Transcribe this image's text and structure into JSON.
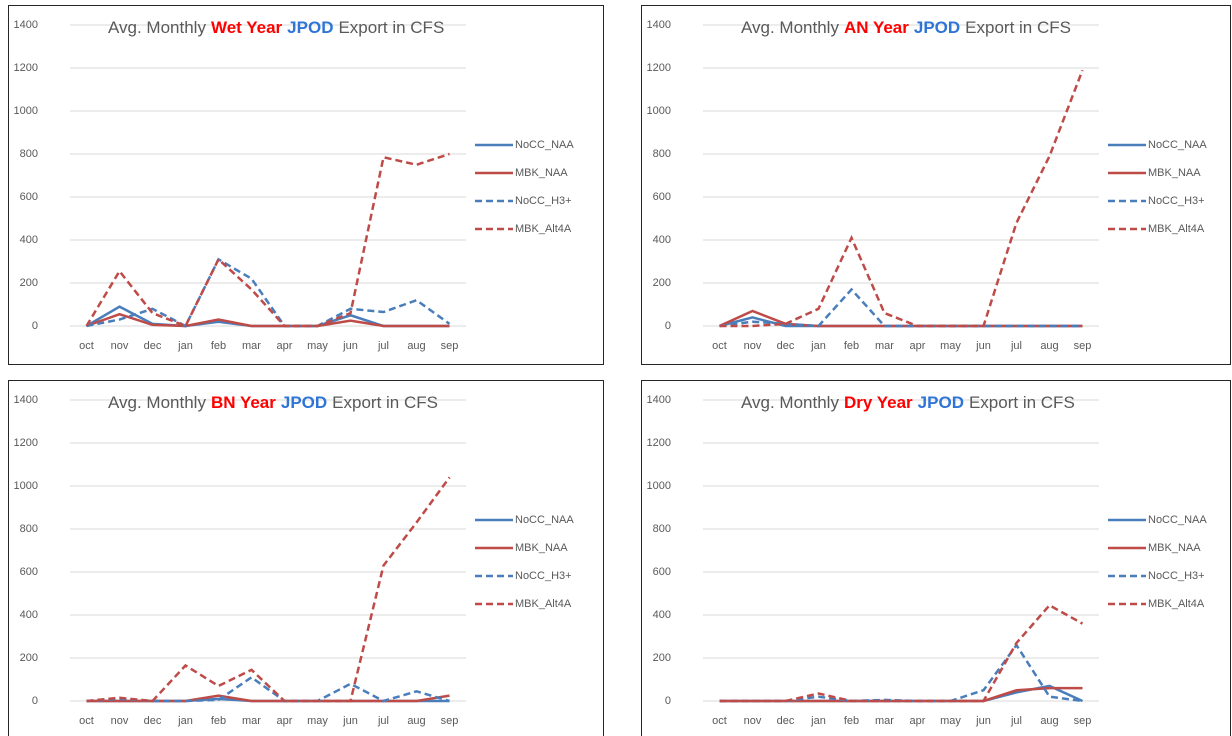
{
  "chart_data": [
    {
      "type": "line",
      "title": [
        "Avg. Monthly",
        "Wet Year",
        "JPOD",
        "Export in CFS"
      ],
      "categories": [
        "oct",
        "nov",
        "dec",
        "jan",
        "feb",
        "mar",
        "apr",
        "may",
        "jun",
        "jul",
        "aug",
        "sep"
      ],
      "ylim": [
        0,
        1400
      ],
      "yticks": [
        0,
        200,
        400,
        600,
        800,
        1000,
        1200,
        1400
      ],
      "grid": true,
      "legend": "right",
      "series": [
        {
          "name": "NoCC_NAA",
          "color": "#4a7ebb",
          "dash": false,
          "values": [
            0,
            90,
            10,
            0,
            20,
            0,
            0,
            0,
            50,
            0,
            0,
            0
          ]
        },
        {
          "name": "MBK_NAA",
          "color": "#be4b48",
          "dash": false,
          "values": [
            0,
            55,
            5,
            0,
            30,
            0,
            0,
            0,
            25,
            0,
            0,
            0
          ]
        },
        {
          "name": "NoCC_H3+",
          "color": "#4a7ebb",
          "dash": true,
          "values": [
            0,
            30,
            80,
            0,
            310,
            220,
            0,
            0,
            80,
            65,
            120,
            10
          ]
        },
        {
          "name": "MBK_Alt4A",
          "color": "#be4b48",
          "dash": true,
          "values": [
            0,
            255,
            60,
            0,
            310,
            170,
            0,
            0,
            60,
            785,
            750,
            800
          ]
        }
      ]
    },
    {
      "type": "line",
      "title": [
        "Avg. Monthly",
        "AN Year",
        "JPOD",
        "Export in CFS"
      ],
      "categories": [
        "oct",
        "nov",
        "dec",
        "jan",
        "feb",
        "mar",
        "apr",
        "may",
        "jun",
        "jul",
        "aug",
        "sep"
      ],
      "ylim": [
        0,
        1400
      ],
      "yticks": [
        0,
        200,
        400,
        600,
        800,
        1000,
        1200,
        1400
      ],
      "grid": true,
      "legend": "right",
      "series": [
        {
          "name": "NoCC_NAA",
          "color": "#4a7ebb",
          "dash": false,
          "values": [
            0,
            40,
            0,
            0,
            0,
            0,
            0,
            0,
            0,
            0,
            0,
            0
          ]
        },
        {
          "name": "MBK_NAA",
          "color": "#be4b48",
          "dash": false,
          "values": [
            0,
            70,
            10,
            0,
            0,
            0,
            0,
            0,
            0,
            0,
            0,
            0
          ]
        },
        {
          "name": "NoCC_H3+",
          "color": "#4a7ebb",
          "dash": true,
          "values": [
            0,
            20,
            10,
            0,
            170,
            0,
            0,
            0,
            0,
            0,
            0,
            0
          ]
        },
        {
          "name": "MBK_Alt4A",
          "color": "#be4b48",
          "dash": true,
          "values": [
            0,
            0,
            10,
            80,
            410,
            60,
            0,
            0,
            0,
            480,
            790,
            1190
          ]
        }
      ]
    },
    {
      "type": "line",
      "title": [
        "Avg. Monthly",
        "BN Year",
        "JPOD",
        "Export in CFS"
      ],
      "categories": [
        "oct",
        "nov",
        "dec",
        "jan",
        "feb",
        "mar",
        "apr",
        "may",
        "jun",
        "jul",
        "aug",
        "sep"
      ],
      "ylim": [
        0,
        1400
      ],
      "yticks": [
        0,
        200,
        400,
        600,
        800,
        1000,
        1200,
        1400
      ],
      "grid": true,
      "legend": "right",
      "series": [
        {
          "name": "NoCC_NAA",
          "color": "#4a7ebb",
          "dash": false,
          "values": [
            0,
            0,
            0,
            0,
            10,
            0,
            0,
            0,
            0,
            0,
            0,
            0
          ]
        },
        {
          "name": "MBK_NAA",
          "color": "#be4b48",
          "dash": false,
          "values": [
            0,
            0,
            0,
            0,
            25,
            0,
            0,
            0,
            0,
            0,
            0,
            25
          ]
        },
        {
          "name": "NoCC_H3+",
          "color": "#4a7ebb",
          "dash": true,
          "values": [
            0,
            10,
            0,
            0,
            5,
            110,
            0,
            0,
            80,
            0,
            45,
            0
          ]
        },
        {
          "name": "MBK_Alt4A",
          "color": "#be4b48",
          "dash": true,
          "values": [
            0,
            15,
            0,
            165,
            70,
            145,
            0,
            0,
            0,
            630,
            830,
            1040
          ]
        }
      ]
    },
    {
      "type": "line",
      "title": [
        "Avg. Monthly",
        "Dry Year",
        "JPOD",
        "Export in CFS"
      ],
      "categories": [
        "oct",
        "nov",
        "dec",
        "jan",
        "feb",
        "mar",
        "apr",
        "may",
        "jun",
        "jul",
        "aug",
        "sep"
      ],
      "ylim": [
        0,
        1400
      ],
      "yticks": [
        0,
        200,
        400,
        600,
        800,
        1000,
        1200,
        1400
      ],
      "grid": true,
      "legend": "right",
      "series": [
        {
          "name": "NoCC_NAA",
          "color": "#4a7ebb",
          "dash": false,
          "values": [
            0,
            0,
            0,
            0,
            0,
            0,
            0,
            0,
            0,
            40,
            70,
            0
          ]
        },
        {
          "name": "MBK_NAA",
          "color": "#be4b48",
          "dash": false,
          "values": [
            0,
            0,
            0,
            0,
            0,
            0,
            0,
            0,
            0,
            50,
            60,
            60
          ]
        },
        {
          "name": "NoCC_H3+",
          "color": "#4a7ebb",
          "dash": true,
          "values": [
            0,
            0,
            0,
            20,
            0,
            5,
            0,
            0,
            50,
            260,
            20,
            0
          ]
        },
        {
          "name": "MBK_Alt4A",
          "color": "#be4b48",
          "dash": true,
          "values": [
            0,
            0,
            0,
            35,
            0,
            0,
            0,
            0,
            0,
            270,
            445,
            360
          ]
        }
      ]
    }
  ]
}
